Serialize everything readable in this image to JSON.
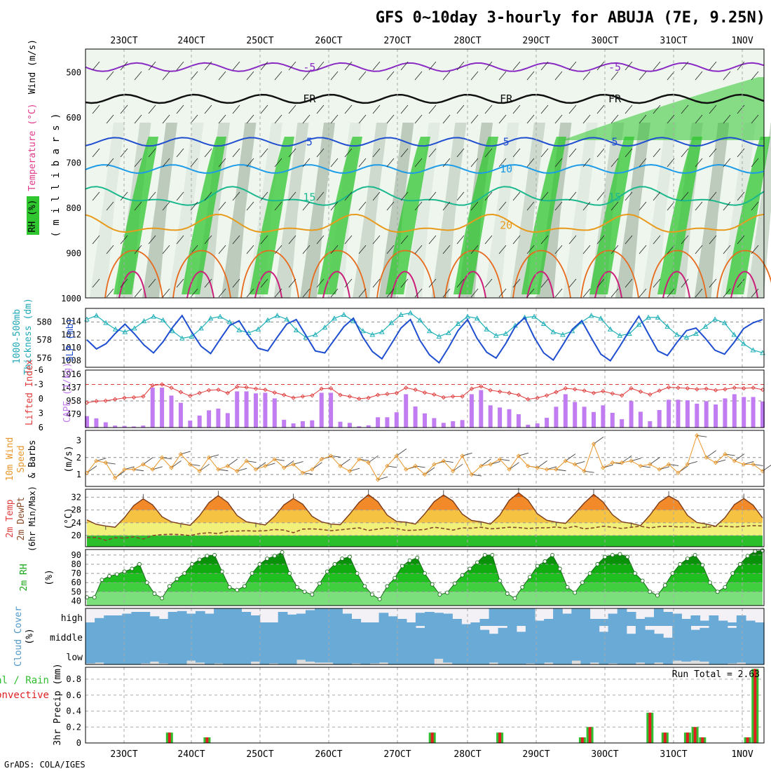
{
  "title": "GFS 0~10day 3-hourly for ABUJA (7E, 9.25N)",
  "footer": "GrADS: COLA/IGES",
  "dates": [
    "23OCT",
    "24OCT",
    "25OCT",
    "26OCT",
    "27OCT",
    "28OCT",
    "29OCT",
    "30OCT",
    "31OCT",
    "1NOV"
  ],
  "colors": {
    "rh_green": "#2fc62f",
    "slp": "#1f4fd0",
    "thickness": "#20b0b8",
    "cape": "#c07cf0",
    "lifted": "#e03a3a",
    "wind10m": "#e8962a",
    "temp_hot": "#e65f00",
    "dewpt": "#8a4a2a",
    "rh2m": "#1aa81a",
    "cloud": "#6aaad6",
    "precip_total": "#2fbf2f",
    "precip_conv": "#e02020"
  },
  "chart_data": [
    {
      "type": "heatmap",
      "panel": "upper-air",
      "ylabel": "millibars",
      "labels": [
        "Wind (m/s)",
        "Temperature (°C)",
        "RH (%)"
      ],
      "yticks": [
        500,
        600,
        700,
        800,
        900,
        1000
      ],
      "ylim": [
        450,
        1000
      ],
      "isotherms": [
        {
          "label": "-5",
          "level": 490,
          "color": "#8a2bc4"
        },
        {
          "label": "FR",
          "level": 560,
          "color": "#111111"
        },
        {
          "label": "5",
          "level": 655,
          "color": "#1f4fd0"
        },
        {
          "label": "10",
          "level": 715,
          "color": "#1c9be8"
        },
        {
          "label": "15",
          "level": 778,
          "color": "#1bb88e"
        },
        {
          "label": "20",
          "level": 840,
          "color": "#e89a1c"
        }
      ],
      "rh_contours": [
        "30",
        "50",
        "10"
      ]
    },
    {
      "type": "line",
      "panel": "slp-thickness",
      "series": [
        {
          "name": "1000-500mb Thickness (dm)",
          "axis": "left",
          "yticks": [
            576,
            578,
            580
          ],
          "values": [
            580.3,
            580.7,
            579.9,
            579.2,
            578.9,
            579.3,
            580.1,
            580.6,
            580.2,
            579.0,
            578.2,
            578.4,
            579.3,
            580.4,
            580.6,
            580.0,
            579.1,
            578.8,
            579.2,
            580.2,
            580.7,
            580.3,
            579.1,
            578.3,
            578.6,
            579.4,
            580.4,
            580.8,
            580.1,
            579.0,
            578.6,
            578.9,
            579.9,
            580.8,
            581.0,
            580.2,
            579.0,
            578.4,
            578.8,
            579.8,
            580.6,
            580.4,
            579.2,
            578.5,
            578.7,
            579.6,
            580.5,
            580.6,
            579.8,
            578.9,
            578.6,
            579.0,
            580.0,
            580.7,
            580.4,
            579.2,
            578.5,
            578.7,
            579.7,
            580.5,
            580.5,
            579.5,
            578.6,
            578.3,
            578.7,
            579.5,
            580.3,
            579.9,
            578.6,
            577.6,
            576.9,
            576.6
          ]
        },
        {
          "name": "SLP (mb)",
          "axis": "right",
          "yticks": [
            1008,
            1010,
            1012,
            1014
          ],
          "values": [
            1011.2,
            1009.8,
            1010.6,
            1012.2,
            1013.6,
            1012.1,
            1010.4,
            1009.2,
            1010.9,
            1013.1,
            1014.9,
            1012.4,
            1010.2,
            1009.1,
            1011.3,
            1013.4,
            1014.1,
            1011.8,
            1009.9,
            1009.5,
            1011.6,
            1013.6,
            1014.3,
            1011.9,
            1009.5,
            1009.2,
            1011.2,
            1013.2,
            1014.5,
            1011.6,
            1009.4,
            1008.3,
            1010.6,
            1013.0,
            1014.3,
            1011.1,
            1008.9,
            1007.7,
            1010.0,
            1012.6,
            1014.3,
            1011.4,
            1009.3,
            1008.4,
            1010.6,
            1013.2,
            1014.6,
            1011.6,
            1009.2,
            1008.1,
            1010.4,
            1012.8,
            1014.1,
            1011.5,
            1009.0,
            1008.0,
            1010.2,
            1012.6,
            1014.8,
            1012.1,
            1009.5,
            1008.8,
            1010.8,
            1012.6,
            1013.0,
            1011.4,
            1009.6,
            1009.0,
            1010.8,
            1012.9,
            1013.8,
            1014.3
          ]
        }
      ]
    },
    {
      "type": "bar",
      "panel": "cape-lifted",
      "series": [
        {
          "name": "CAPE (J/kg)",
          "axis": "right",
          "yticks": [
            479,
            958,
            1437,
            1916
          ],
          "values": [
            410,
            330,
            190,
            70,
            60,
            40,
            70,
            1437,
            1437,
            1150,
            890,
            250,
            430,
            620,
            680,
            520,
            1300,
            1300,
            1230,
            1250,
            1050,
            280,
            150,
            230,
            260,
            1250,
            1250,
            210,
            170,
            45,
            80,
            370,
            370,
            550,
            1200,
            760,
            510,
            340,
            170,
            230,
            270,
            1200,
            1350,
            800,
            720,
            660,
            480,
            100,
            150,
            350,
            750,
            1200,
            920,
            750,
            560,
            800,
            530,
            300,
            950,
            570,
            230,
            630,
            1000,
            1000,
            980,
            860,
            950,
            830,
            1050,
            1200,
            1100,
            1100,
            940
          ]
        },
        {
          "name": "Lifted Index",
          "axis": "left",
          "yticks": [
            -6,
            -3,
            0,
            3,
            6
          ],
          "values": [
            0.8,
            0.5,
            0.4,
            0.1,
            -0.2,
            -0.3,
            -0.5,
            -2.8,
            -3.0,
            -2.3,
            -1.4,
            -0.6,
            -1.2,
            -1.8,
            -1.9,
            -1.2,
            -2.5,
            -2.4,
            -2.1,
            -1.9,
            -1.3,
            -0.8,
            -0.2,
            -0.5,
            -0.7,
            -2.1,
            -2.2,
            -0.8,
            -0.5,
            0.0,
            -0.2,
            -0.8,
            -1.0,
            -1.2,
            -2.3,
            -1.9,
            -1.3,
            -0.9,
            -0.3,
            -0.5,
            -0.5,
            -2.1,
            -2.6,
            -1.8,
            -1.5,
            -1.2,
            -0.8,
            0.1,
            -0.2,
            -0.7,
            -1.4,
            -2.2,
            -2.0,
            -1.7,
            -1.2,
            -1.6,
            -1.1,
            -0.7,
            -2.2,
            -1.5,
            -0.9,
            -1.7,
            -2.4,
            -2.3,
            -2.2,
            -2.0,
            -2.1,
            -1.8,
            -2.0,
            -2.3,
            -2.2,
            -2.3,
            -1.9
          ]
        }
      ]
    },
    {
      "type": "line",
      "panel": "wind10m",
      "ylabel": "10m Wind Speed & Barbs (m/s)",
      "yticks": [
        1,
        2,
        3
      ],
      "values": [
        1.1,
        1.8,
        1.7,
        0.8,
        1.3,
        1.3,
        1.6,
        1.3,
        2.0,
        1.4,
        2.2,
        1.6,
        1.2,
        2.0,
        1.3,
        1.5,
        1.2,
        1.8,
        1.3,
        1.5,
        1.9,
        1.4,
        1.6,
        1.1,
        1.3,
        1.9,
        2.1,
        1.5,
        1.2,
        1.9,
        1.7,
        0.7,
        1.5,
        2.1,
        1.3,
        1.5,
        1.0,
        1.6,
        1.8,
        1.2,
        2.1,
        1.0,
        1.5,
        1.6,
        1.9,
        1.3,
        2.1,
        1.5,
        1.4,
        1.3,
        1.3,
        1.8,
        1.6,
        1.2,
        2.8,
        1.4,
        1.7,
        1.7,
        1.8,
        1.5,
        1.6,
        1.3,
        1.6,
        1.1,
        1.6,
        3.3,
        2.0,
        1.7,
        2.2,
        1.8,
        1.6,
        1.6,
        1.2
      ]
    },
    {
      "type": "area",
      "panel": "temp-dewpt",
      "ylabel": "2m Temp, 2m DewPt (6hr Min/Max) (°C)",
      "yticks": [
        20,
        24,
        28,
        32
      ],
      "temp": [
        24.9,
        23.5,
        23.0,
        22.6,
        25.6,
        29.4,
        31.5,
        29.6,
        25.9,
        24.3,
        23.7,
        23.2,
        26.2,
        30.3,
        32.5,
        30.4,
        26.3,
        24.3,
        23.8,
        23.3,
        26.0,
        29.6,
        31.6,
        29.8,
        26.0,
        24.3,
        23.6,
        23.4,
        26.7,
        30.4,
        32.8,
        30.6,
        26.4,
        24.4,
        24.2,
        23.6,
        26.8,
        30.6,
        32.7,
        30.8,
        26.7,
        24.7,
        24.3,
        23.6,
        26.4,
        31.0,
        33.4,
        31.1,
        26.8,
        24.8,
        24.2,
        23.8,
        26.9,
        30.2,
        32.9,
        30.5,
        26.5,
        24.3,
        23.8,
        23.1,
        26.4,
        30.4,
        32.4,
        30.8,
        26.3,
        24.1,
        23.6,
        22.9,
        25.6,
        29.7,
        31.6,
        29.5,
        25.5
      ],
      "dewpt": [
        19.4,
        19.4,
        18.5,
        19.3,
        19.2,
        19.6,
        18.9,
        20.0,
        20.3,
        20.4,
        20.3,
        20.0,
        20.6,
        20.9,
        20.6,
        21.3,
        21.4,
        21.5,
        21.4,
        21.5,
        21.9,
        21.7,
        20.9,
        22.0,
        22.1,
        21.9,
        21.5,
        21.8,
        22.1,
        22.4,
        21.6,
        22.0,
        22.4,
        22.2,
        21.6,
        21.7,
        21.9,
        22.6,
        22.2,
        21.7,
        22.4,
        22.3,
        22.6,
        22.1,
        22.3,
        22.6,
        22.5,
        22.2,
        22.4,
        22.4,
        22.7,
        22.3,
        22.9,
        22.1,
        22.4,
        22.9,
        22.6,
        22.2,
        22.6,
        22.9,
        22.4,
        22.8,
        22.9,
        22.7,
        22.8,
        22.5,
        22.6,
        22.9,
        22.9,
        22.7,
        22.9,
        23.1,
        23.0
      ]
    },
    {
      "type": "area",
      "panel": "rh2m",
      "ylabel": "2m RH (%)",
      "yticks": [
        40,
        50,
        60,
        70,
        80,
        90
      ],
      "values": [
        44,
        44,
        63,
        67,
        69,
        72,
        75,
        80,
        60,
        48,
        43,
        56,
        64,
        70,
        80,
        85,
        89,
        90,
        72,
        55,
        52,
        56,
        70,
        80,
        86,
        89,
        93,
        70,
        55,
        50,
        47,
        59,
        72,
        80,
        86,
        88,
        70,
        56,
        47,
        42,
        56,
        65,
        78,
        84,
        87,
        70,
        58,
        47,
        49,
        59,
        68,
        75,
        82,
        90,
        90,
        62,
        48,
        43,
        55,
        66,
        78,
        83,
        90,
        75,
        55,
        49,
        60,
        70,
        80,
        88,
        90,
        91,
        88,
        70,
        62,
        50,
        46,
        57,
        70,
        80,
        86,
        90,
        79,
        60,
        50,
        55,
        70,
        80,
        89,
        94,
        95
      ]
    },
    {
      "type": "bar",
      "panel": "cloud",
      "ylabel": "Cloud Cover (%)",
      "layers": [
        "high",
        "middle",
        "low"
      ],
      "high": [
        20,
        45,
        60,
        60,
        70,
        80,
        80,
        55,
        40,
        80,
        85,
        70,
        85,
        70,
        100,
        100,
        100,
        80,
        60,
        20,
        20,
        80,
        65,
        70,
        90,
        100,
        100,
        100,
        70,
        40,
        20,
        20,
        75,
        55,
        40,
        20,
        75,
        80,
        75,
        70,
        40,
        10,
        20,
        40,
        100,
        100,
        100,
        100,
        100,
        30,
        40,
        100,
        70,
        100,
        100,
        40,
        40,
        70,
        100,
        80,
        40,
        50,
        100,
        80,
        70,
        40,
        60,
        30,
        60,
        30,
        20,
        60,
        30,
        20
      ],
      "middle": [
        100,
        100,
        100,
        100,
        100,
        100,
        100,
        100,
        100,
        100,
        100,
        100,
        100,
        100,
        100,
        100,
        100,
        100,
        100,
        100,
        100,
        100,
        100,
        100,
        100,
        100,
        100,
        100,
        100,
        100,
        100,
        100,
        100,
        100,
        100,
        100,
        90,
        100,
        100,
        100,
        100,
        100,
        100,
        80,
        60,
        90,
        100,
        70,
        100,
        100,
        100,
        100,
        100,
        100,
        100,
        100,
        70,
        100,
        100,
        60,
        100,
        80,
        60,
        40,
        100,
        100,
        80,
        90,
        100,
        100,
        90,
        100,
        100,
        100
      ],
      "low": [
        5,
        10,
        0,
        0,
        0,
        0,
        5,
        15,
        5,
        0,
        0,
        20,
        10,
        0,
        5,
        0,
        0,
        0,
        15,
        0,
        5,
        0,
        0,
        25,
        15,
        10,
        10,
        0,
        0,
        5,
        0,
        5,
        10,
        0,
        0,
        0,
        0,
        0,
        30,
        10,
        0,
        0,
        0,
        0,
        10,
        0,
        0,
        0,
        5,
        0,
        10,
        0,
        0,
        20,
        0,
        10,
        0,
        5,
        0,
        0,
        10,
        0,
        10,
        0,
        20,
        15,
        20,
        15,
        0,
        0,
        5,
        10,
        0,
        0
      ]
    },
    {
      "type": "bar",
      "panel": "precip",
      "ylabel": "3hr Precip (mm)",
      "legend": [
        "Total / Rain",
        "Convective"
      ],
      "run_total": "Run Total = 2.63",
      "yticks": [
        0,
        0.2,
        0.4,
        0.6,
        0.8
      ],
      "values": [
        0,
        0,
        0,
        0,
        0,
        0,
        0,
        0,
        0,
        0,
        0,
        0.13,
        0,
        0,
        0,
        0,
        0.07,
        0,
        0,
        0,
        0,
        0,
        0,
        0,
        0,
        0,
        0,
        0,
        0,
        0,
        0,
        0,
        0,
        0,
        0,
        0,
        0,
        0,
        0,
        0,
        0,
        0,
        0,
        0,
        0,
        0,
        0.13,
        0,
        0,
        0,
        0,
        0,
        0,
        0,
        0,
        0.13,
        0,
        0,
        0,
        0,
        0,
        0,
        0,
        0,
        0,
        0,
        0.07,
        0.2,
        0,
        0,
        0,
        0,
        0,
        0,
        0,
        0.38,
        0,
        0.13,
        0,
        0,
        0.13,
        0.2,
        0.07,
        0,
        0,
        0,
        0,
        0,
        0.07,
        0.93,
        0
      ]
    }
  ]
}
